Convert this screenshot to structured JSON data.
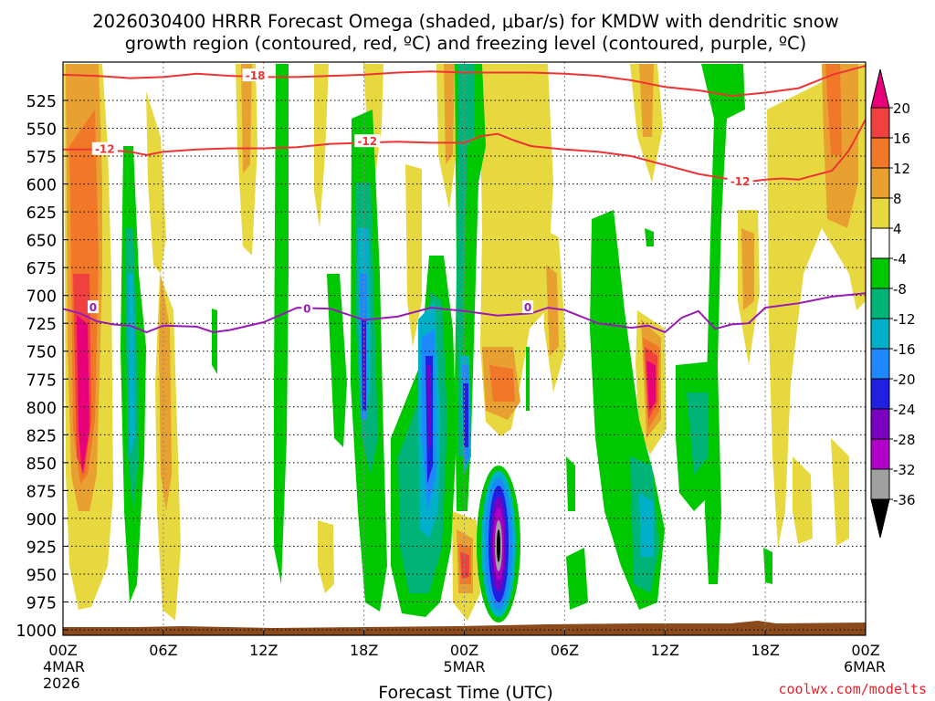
{
  "chart_data": {
    "type": "heatmap",
    "title_line1": "2026030400 HRRR Forecast Omega (shaded, μbar/s) for KMDW with dendritic snow",
    "title_line2": "growth region (contoured, red, ºC) and freezing level (contoured, purple, ºC)",
    "xlabel": "Forecast Time (UTC)",
    "credit": "coolwx.com/modelts",
    "x_ticks": [
      {
        "hour": 0,
        "label": "00Z",
        "sub1": "4MAR",
        "sub2": "2026"
      },
      {
        "hour": 6,
        "label": "06Z"
      },
      {
        "hour": 12,
        "label": "12Z"
      },
      {
        "hour": 18,
        "label": "18Z"
      },
      {
        "hour": 24,
        "label": "00Z",
        "sub1": "5MAR"
      },
      {
        "hour": 30,
        "label": "06Z"
      },
      {
        "hour": 36,
        "label": "12Z"
      },
      {
        "hour": 42,
        "label": "18Z"
      },
      {
        "hour": 48,
        "label": "00Z",
        "sub1": "6MAR"
      }
    ],
    "xlim": [
      0,
      48
    ],
    "ylim": [
      500,
      1000
    ],
    "y_ticks": [
      525,
      550,
      575,
      600,
      625,
      650,
      675,
      700,
      725,
      750,
      775,
      800,
      825,
      850,
      875,
      900,
      925,
      950,
      975,
      1000
    ],
    "colorbar": {
      "labels": [
        "20",
        "16",
        "12",
        "8",
        "4",
        "-4",
        "-8",
        "-12",
        "-16",
        "-20",
        "-24",
        "-28",
        "-32",
        "-36"
      ],
      "colors": [
        "#e8007a",
        "#f04040",
        "#f07828",
        "#e8a030",
        "#e8d840",
        "#ffffff",
        "#00c800",
        "#00b478",
        "#00b0c8",
        "#1e88ff",
        "#2020e0",
        "#7a00c0",
        "#b000c8",
        "#a0a0a0",
        "#000000"
      ]
    },
    "series": [
      {
        "name": "-18 ºC",
        "color": "#ee3333",
        "label": "-18",
        "label_at": [
          11.5,
          503
        ],
        "points": [
          [
            0,
            502
          ],
          [
            2,
            503
          ],
          [
            4,
            505
          ],
          [
            6,
            504
          ],
          [
            8,
            501
          ],
          [
            10,
            503
          ],
          [
            12,
            504
          ],
          [
            14,
            504
          ],
          [
            16,
            503
          ],
          [
            18,
            502
          ],
          [
            20,
            500
          ],
          [
            22,
            499
          ],
          [
            24,
            500
          ],
          [
            26,
            500
          ],
          [
            28,
            500
          ],
          [
            30,
            501
          ],
          [
            32,
            503
          ],
          [
            34,
            507
          ],
          [
            36,
            513
          ],
          [
            38,
            516
          ],
          [
            40,
            521
          ],
          [
            42,
            518
          ],
          [
            44,
            514
          ],
          [
            46,
            502
          ],
          [
            48,
            494
          ]
        ]
      },
      {
        "name": "-12 ºC",
        "color": "#ee3333",
        "label": "-12",
        "label_at": [
          2.5,
          569
        ],
        "label2": "-12",
        "label2_at": [
          18.2,
          562
        ],
        "label3": "-12",
        "label3_at": [
          40.5,
          598
        ],
        "points": [
          [
            0,
            569
          ],
          [
            2,
            569
          ],
          [
            4,
            571
          ],
          [
            5,
            574
          ],
          [
            6,
            571
          ],
          [
            8,
            569
          ],
          [
            10,
            568
          ],
          [
            12,
            568
          ],
          [
            14,
            567
          ],
          [
            16,
            564
          ],
          [
            18,
            563
          ],
          [
            20,
            562
          ],
          [
            22,
            563
          ],
          [
            24,
            563
          ],
          [
            25,
            557
          ],
          [
            26,
            555
          ],
          [
            27,
            561
          ],
          [
            28,
            566
          ],
          [
            30,
            569
          ],
          [
            32,
            571
          ],
          [
            34,
            575
          ],
          [
            36,
            583
          ],
          [
            38,
            591
          ],
          [
            40,
            596
          ],
          [
            41,
            598
          ],
          [
            42,
            596
          ],
          [
            43,
            595
          ],
          [
            44,
            596
          ],
          [
            45,
            592
          ],
          [
            46,
            588
          ],
          [
            47,
            570
          ],
          [
            48,
            542
          ]
        ]
      },
      {
        "name": "0 ºC freezing level",
        "color": "#9a1ab8",
        "label": "0",
        "label_at": [
          1.8,
          711
        ],
        "label2": "0",
        "label2_at": [
          14.6,
          712
        ],
        "label3": "0",
        "label3_at": [
          27.8,
          711
        ],
        "points": [
          [
            0,
            712
          ],
          [
            1,
            716
          ],
          [
            2,
            723
          ],
          [
            3,
            726
          ],
          [
            4,
            727
          ],
          [
            5,
            733
          ],
          [
            6,
            727
          ],
          [
            8,
            728
          ],
          [
            9,
            733
          ],
          [
            10,
            731
          ],
          [
            12,
            724
          ],
          [
            14,
            711
          ],
          [
            16,
            712
          ],
          [
            18,
            722
          ],
          [
            20,
            719
          ],
          [
            22,
            711
          ],
          [
            24,
            714
          ],
          [
            26,
            718
          ],
          [
            28,
            716
          ],
          [
            29,
            711
          ],
          [
            30,
            713
          ],
          [
            32,
            725
          ],
          [
            34,
            729
          ],
          [
            35,
            727
          ],
          [
            36,
            733
          ],
          [
            37,
            720
          ],
          [
            38,
            714
          ],
          [
            39,
            730
          ],
          [
            40,
            726
          ],
          [
            41,
            725
          ],
          [
            42,
            711
          ],
          [
            44,
            707
          ],
          [
            46,
            701
          ],
          [
            48,
            698
          ]
        ]
      }
    ]
  }
}
